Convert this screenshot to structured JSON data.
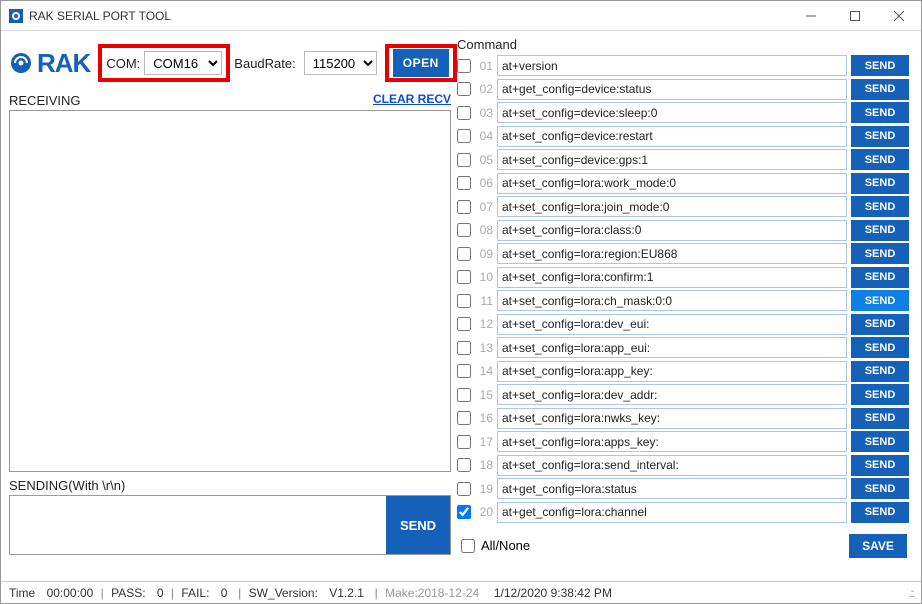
{
  "window": {
    "title": "RAK SERIAL PORT TOOL",
    "min": "—",
    "max": "☐",
    "close": "✕"
  },
  "logo": {
    "text": "RAK"
  },
  "connection": {
    "com_label": "COM:",
    "com_value": "COM16",
    "baud_label": "BaudRate:",
    "baud_value": "115200",
    "open_label": "OPEN"
  },
  "receiving": {
    "label": "RECEIVING",
    "clear": "CLEAR RECV"
  },
  "sending": {
    "label": "SENDING(With \\r\\n)",
    "send": "SEND"
  },
  "command": {
    "label": "Command",
    "send_btn": "SEND",
    "allnone": "All/None",
    "save": "SAVE",
    "rows": [
      {
        "idx": "01",
        "cmd": "at+version",
        "chk": false
      },
      {
        "idx": "02",
        "cmd": "at+get_config=device:status",
        "chk": false
      },
      {
        "idx": "03",
        "cmd": "at+set_config=device:sleep:0",
        "chk": false
      },
      {
        "idx": "04",
        "cmd": "at+set_config=device:restart",
        "chk": false
      },
      {
        "idx": "05",
        "cmd": "at+set_config=device:gps:1",
        "chk": false
      },
      {
        "idx": "06",
        "cmd": "at+set_config=lora:work_mode:0",
        "chk": false
      },
      {
        "idx": "07",
        "cmd": "at+set_config=lora:join_mode:0",
        "chk": false
      },
      {
        "idx": "08",
        "cmd": "at+set_config=lora:class:0",
        "chk": false
      },
      {
        "idx": "09",
        "cmd": "at+set_config=lora:region:EU868",
        "chk": false
      },
      {
        "idx": "10",
        "cmd": "at+set_config=lora:confirm:1",
        "chk": false
      },
      {
        "idx": "11",
        "cmd": "at+set_config=lora:ch_mask:0:0",
        "chk": false,
        "active": true
      },
      {
        "idx": "12",
        "cmd": "at+set_config=lora:dev_eui:",
        "chk": false
      },
      {
        "idx": "13",
        "cmd": "at+set_config=lora:app_eui:",
        "chk": false
      },
      {
        "idx": "14",
        "cmd": "at+set_config=lora:app_key:",
        "chk": false
      },
      {
        "idx": "15",
        "cmd": "at+set_config=lora:dev_addr:",
        "chk": false
      },
      {
        "idx": "16",
        "cmd": "at+set_config=lora:nwks_key:",
        "chk": false
      },
      {
        "idx": "17",
        "cmd": "at+set_config=lora:apps_key:",
        "chk": false
      },
      {
        "idx": "18",
        "cmd": "at+set_config=lora:send_interval:",
        "chk": false
      },
      {
        "idx": "19",
        "cmd": "at+get_config=lora:status",
        "chk": false
      },
      {
        "idx": "20",
        "cmd": "at+get_config=lora:channel",
        "chk": true
      }
    ]
  },
  "status": {
    "time_label": "Time",
    "time": "00:00:00",
    "pass_label": "PASS:",
    "pass": "0",
    "fail_label": "FAIL:",
    "fail": "0",
    "ver_label": "SW_Version:",
    "ver": "V1.2.1",
    "make": "Make:2018-12-24",
    "ts": "1/12/2020 9:38:42 PM"
  },
  "colors": {
    "accent": "#1560b8",
    "highlight": "#e60000"
  }
}
